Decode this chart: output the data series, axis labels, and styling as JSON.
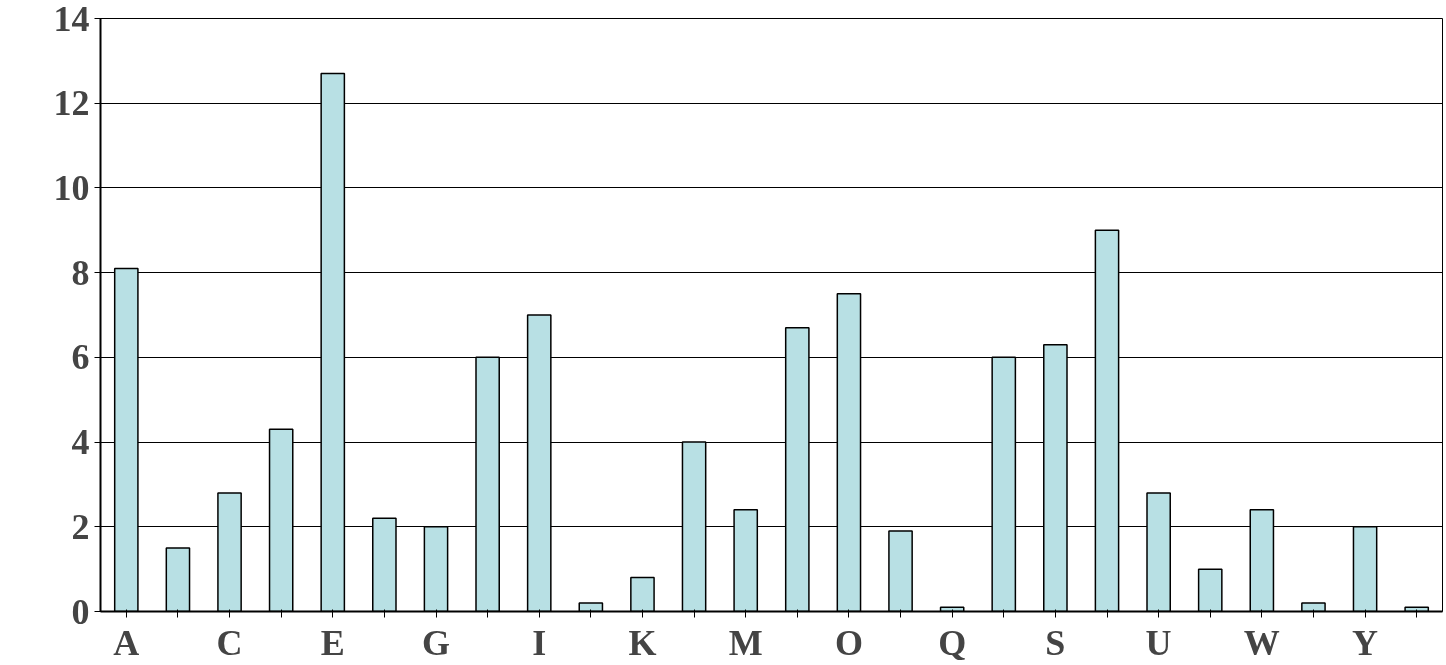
{
  "chart_data": {
    "type": "bar",
    "categories": [
      "A",
      null,
      "C",
      null,
      "E",
      null,
      "G",
      null,
      "I",
      null,
      "K",
      null,
      "M",
      null,
      "O",
      null,
      "Q",
      null,
      "S",
      null,
      "U",
      null,
      "W",
      null,
      "Y",
      null
    ],
    "values": [
      8.1,
      1.5,
      2.8,
      4.3,
      12.7,
      2.2,
      2.0,
      6.0,
      7.0,
      0.2,
      0.8,
      4.0,
      2.4,
      6.7,
      7.5,
      1.9,
      0.1,
      6.0,
      6.3,
      9.0,
      2.8,
      1.0,
      2.4,
      0.2,
      2.0,
      0.1
    ],
    "color": "#b8e0e4",
    "ylim": [
      0,
      14
    ],
    "yticks": [
      0,
      2,
      4,
      6,
      8,
      10,
      12,
      14
    ],
    "grid": "y"
  }
}
